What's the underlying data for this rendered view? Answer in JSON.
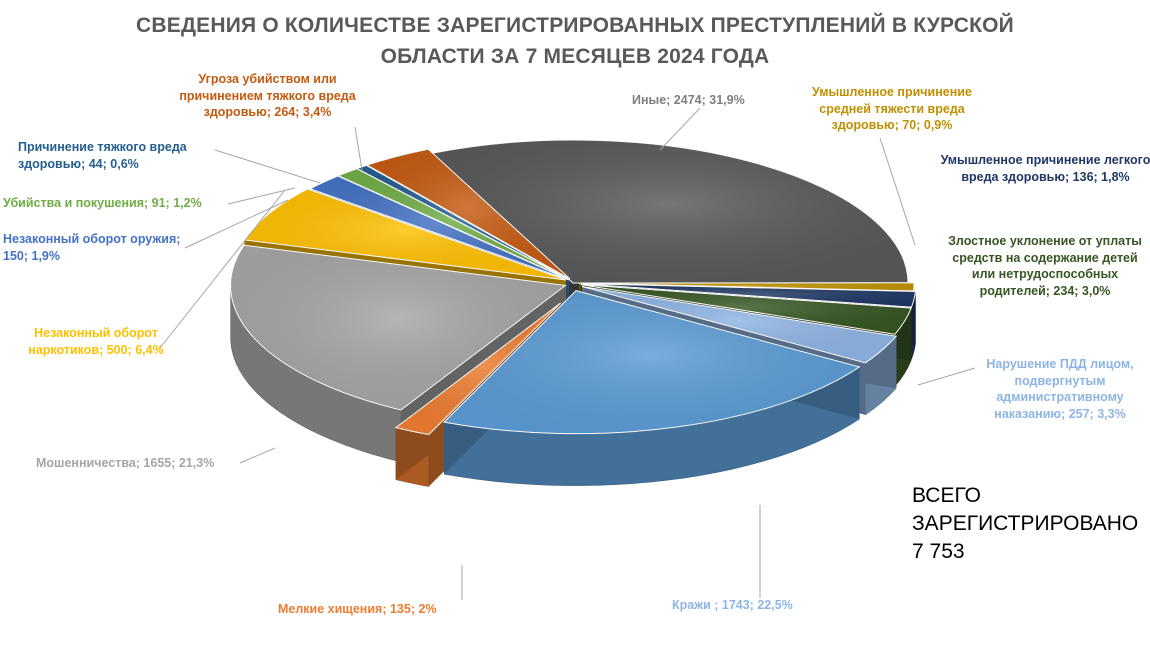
{
  "title_line1": "СВЕДЕНИЯ О КОЛИЧЕСТВЕ ЗАРЕГИСТРИРОВАННЫХ ПРЕСТУПЛЕНИЙ В КУРСКОЙ",
  "title_line2": "ОБЛАСТИ ЗА 7 МЕСЯЦЕВ 2024 ГОДА",
  "total_text": "ВСЕГО\nЗАРЕГИСТРИРОВАНО\n7 753",
  "chart_data": {
    "type": "pie",
    "title": "СВЕДЕНИЯ О КОЛИЧЕСТВЕ ЗАРЕГИСТРИРОВАННЫХ ПРЕСТУПЛЕНИЙ В КУРСКОЙ ОБЛАСТИ ЗА 7 МЕСЯЦЕВ 2024 ГОДА",
    "legend": false,
    "total": 7753,
    "slices": [
      {
        "name": "Иные",
        "value": 2474,
        "percent": 31.9,
        "label": "Иные; 2474; 31,9%",
        "color": "#595959"
      },
      {
        "name": "Умышленное причинение средней тяжести вреда здоровью",
        "value": 70,
        "percent": 0.9,
        "label": "Умышленное причинение средней тяжести вреда здоровью; 70; 0,9%",
        "color": "#BF9000"
      },
      {
        "name": "Умышленное причинение легкого вреда здоровью",
        "value": 136,
        "percent": 1.8,
        "label": "Умышленное причинение легкого вреда здоровью; 136; 1,8%",
        "color": "#203864"
      },
      {
        "name": "Злостное уклонение от уплаты средств на содержание детей или нетрудоспособных родителей",
        "value": 234,
        "percent": 3.0,
        "label": "Злостное уклонение от уплаты средств на содержание детей или нетрудоспособных родителей; 234; 3,0%",
        "color": "#375623"
      },
      {
        "name": "Нарушение ПДД лицом, подвергнутым административному наказанию",
        "value": 257,
        "percent": 3.3,
        "label": "Нарушение ПДД лицом, подвергнутым административному наказанию; 257; 3,3%",
        "color": "#8EB4E3"
      },
      {
        "name": "Кражи",
        "value": 1743,
        "percent": 22.5,
        "label": "Кражи ; 1743; 22,5%",
        "color": "#5B9BD5"
      },
      {
        "name": "Мелкие хищения",
        "value": 135,
        "percent": 2,
        "label": "Мелкие хищения; 135; 2%",
        "color": "#ED7D31"
      },
      {
        "name": "Мошенничества",
        "value": 1655,
        "percent": 21.3,
        "label": "Мошенничества; 1655; 21,3%",
        "color": "#A5A5A5"
      },
      {
        "name": "Незаконный оборот наркотиков",
        "value": 500,
        "percent": 6.4,
        "label": "Незаконный оборот наркотиков; 500; 6,4%",
        "color": "#FFC000"
      },
      {
        "name": "Незаконный оборот оружия",
        "value": 150,
        "percent": 1.9,
        "label": "Незаконный оборот оружия; 150; 1,9%",
        "color": "#4472C4"
      },
      {
        "name": "Убийства и покушения",
        "value": 91,
        "percent": 1.2,
        "label": "Убийства и покушения; 91; 1,2%",
        "color": "#70AD47"
      },
      {
        "name": "Причинение тяжкого вреда здоровью",
        "value": 44,
        "percent": 0.6,
        "label": "Причинение тяжкого вреда здоровью; 44; 0,6%",
        "color": "#255E91"
      },
      {
        "name": "Угроза убийством или причинением тяжкого вреда здоровью",
        "value": 264,
        "percent": 3.4,
        "label": "Угроза убийством или причинением тяжкого вреда здоровью; 264; 3,4%",
        "color": "#C55A11"
      }
    ]
  }
}
